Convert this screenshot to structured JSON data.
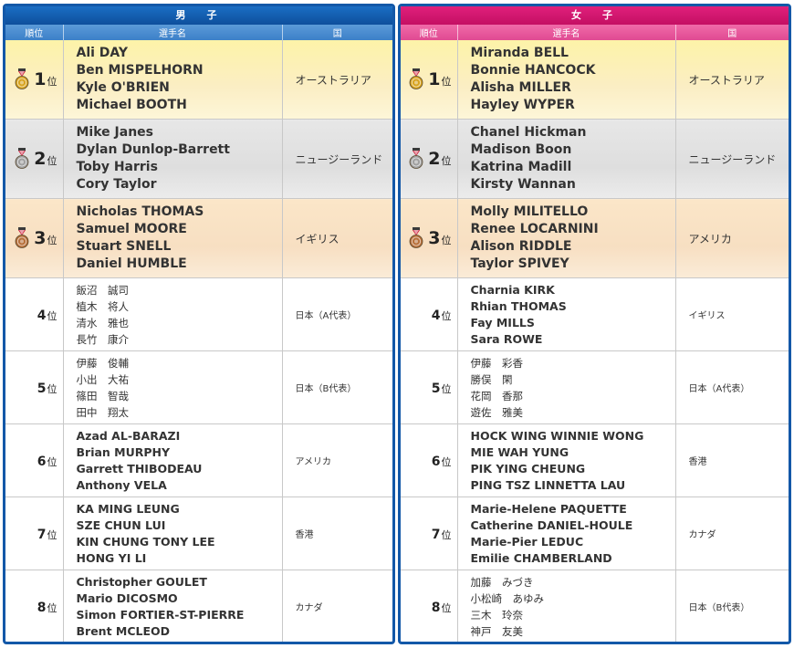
{
  "headers": {
    "rank": "順位",
    "name": "選手名",
    "country": "国"
  },
  "rank_suffix": "位",
  "medal_colors": {
    "gold": "#d8a420",
    "silver": "#a0a0a0",
    "bronze": "#b7703a"
  },
  "men": {
    "title": "男　子",
    "rows": [
      {
        "rank": "1",
        "names": [
          "Ali DAY",
          "Ben MISPELHORN",
          "Kyle O'BRIEN",
          "Michael BOOTH"
        ],
        "country": "オーストラリア"
      },
      {
        "rank": "2",
        "names": [
          "Mike Janes",
          "Dylan Dunlop-Barrett",
          "Toby Harris",
          "Cory Taylor"
        ],
        "country": "ニュージーランド"
      },
      {
        "rank": "3",
        "names": [
          "Nicholas THOMAS",
          "Samuel MOORE",
          "Stuart SNELL",
          "Daniel HUMBLE"
        ],
        "country": "イギリス"
      },
      {
        "rank": "4",
        "names": [
          "飯沼　誠司",
          "植木　将人",
          "清水　雅也",
          "長竹　康介"
        ],
        "country": "日本（A代表）"
      },
      {
        "rank": "5",
        "names": [
          "伊藤　俊輔",
          "小出　大祐",
          "篠田　智哉",
          "田中　翔太"
        ],
        "country": "日本（B代表）"
      },
      {
        "rank": "6",
        "names": [
          "Azad AL-BARAZI",
          "Brian MURPHY",
          "Garrett THIBODEAU",
          "Anthony VELA"
        ],
        "country": "アメリカ"
      },
      {
        "rank": "7",
        "names": [
          "KA MING LEUNG",
          "SZE CHUN LUI",
          "KIN CHUNG TONY LEE",
          "HONG YI LI"
        ],
        "country": "香港"
      },
      {
        "rank": "8",
        "names": [
          "Christopher GOULET",
          "Mario DICOSMO",
          "Simon FORTIER-ST-PIERRE",
          "Brent MCLEOD"
        ],
        "country": "カナダ"
      }
    ]
  },
  "women": {
    "title": "女　子",
    "rows": [
      {
        "rank": "1",
        "names": [
          "Miranda BELL",
          "Bonnie HANCOCK",
          "Alisha MILLER",
          "Hayley WYPER"
        ],
        "country": "オーストラリア"
      },
      {
        "rank": "2",
        "names": [
          "Chanel Hickman",
          "Madison Boon",
          "Katrina Madill",
          "Kirsty Wannan"
        ],
        "country": "ニュージーランド"
      },
      {
        "rank": "3",
        "names": [
          "Molly MILITELLO",
          "Renee LOCARNINI",
          "Alison RIDDLE",
          "Taylor SPIVEY"
        ],
        "country": "アメリカ"
      },
      {
        "rank": "4",
        "names": [
          "Charnia KIRK",
          "Rhian THOMAS",
          "Fay MILLS",
          "Sara ROWE"
        ],
        "country": "イギリス"
      },
      {
        "rank": "5",
        "names": [
          "伊藤　彩香",
          "勝俣　閑",
          "花岡　香那",
          "遊佐　雅美"
        ],
        "country": "日本（A代表）"
      },
      {
        "rank": "6",
        "names": [
          "HOCK WING WINNIE WONG",
          "MIE WAH YUNG",
          "PIK YING CHEUNG",
          "PING TSZ LINNETTA LAU"
        ],
        "country": "香港"
      },
      {
        "rank": "7",
        "names": [
          "Marie-Helene PAQUETTE",
          "Catherine DANIEL-HOULE",
          "Marie-Pier LEDUC",
          "Emilie CHAMBERLAND"
        ],
        "country": "カナダ"
      },
      {
        "rank": "8",
        "names": [
          "加藤　みづき",
          "小松崎　あゆみ",
          "三木　玲奈",
          "神戸　友美"
        ],
        "country": "日本（B代表）"
      }
    ]
  }
}
